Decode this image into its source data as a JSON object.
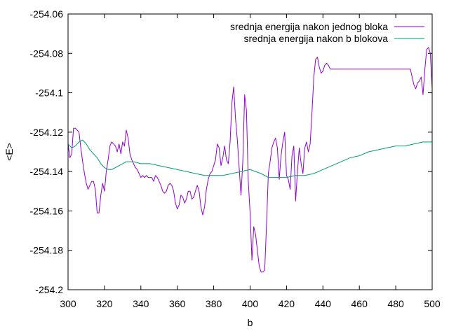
{
  "chart_data": {
    "type": "line",
    "xlabel": "b",
    "ylabel": "<E>",
    "xlim": [
      300,
      500
    ],
    "ylim": [
      -254.2,
      -254.06
    ],
    "x_ticks": [
      "300",
      "320",
      "340",
      "360",
      "380",
      "400",
      "420",
      "440",
      "460",
      "480",
      "500"
    ],
    "y_ticks": [
      "-254.06",
      "-254.08",
      "-254.1",
      "-254.12",
      "-254.14",
      "-254.16",
      "-254.18",
      "-254.2"
    ],
    "legend_position": "top-right",
    "grid": false,
    "series": [
      {
        "name": "srednja energija nakon jednog bloka",
        "color": "#9400d3",
        "points": [
          [
            300,
            -254.126
          ],
          [
            301,
            -254.133
          ],
          [
            302,
            -254.131
          ],
          [
            303,
            -254.118
          ],
          [
            304,
            -254.118
          ],
          [
            305,
            -254.119
          ],
          [
            306,
            -254.12
          ],
          [
            307,
            -254.128
          ],
          [
            308,
            -254.135
          ],
          [
            309,
            -254.141
          ],
          [
            310,
            -254.146
          ],
          [
            311,
            -254.149
          ],
          [
            312,
            -254.147
          ],
          [
            313,
            -254.145
          ],
          [
            314,
            -254.145
          ],
          [
            315,
            -254.149
          ],
          [
            316,
            -254.161
          ],
          [
            317,
            -254.161
          ],
          [
            318,
            -254.152
          ],
          [
            319,
            -254.146
          ],
          [
            320,
            -254.15
          ],
          [
            321,
            -254.14
          ],
          [
            322,
            -254.134
          ],
          [
            323,
            -254.127
          ],
          [
            324,
            -254.125
          ],
          [
            325,
            -254.126
          ],
          [
            326,
            -254.127
          ],
          [
            327,
            -254.13
          ],
          [
            328,
            -254.126
          ],
          [
            329,
            -254.131
          ],
          [
            330,
            -254.125
          ],
          [
            331,
            -254.127
          ],
          [
            332,
            -254.119
          ],
          [
            333,
            -254.123
          ],
          [
            334,
            -254.131
          ],
          [
            335,
            -254.134
          ],
          [
            336,
            -254.136
          ],
          [
            337,
            -254.138
          ],
          [
            338,
            -254.139
          ],
          [
            339,
            -254.141
          ],
          [
            340,
            -254.143
          ],
          [
            341,
            -254.142
          ],
          [
            342,
            -254.143
          ],
          [
            343,
            -254.142
          ],
          [
            344,
            -254.143
          ],
          [
            345,
            -254.143
          ],
          [
            346,
            -254.143
          ],
          [
            347,
            -254.145
          ],
          [
            348,
            -254.142
          ],
          [
            349,
            -254.143
          ],
          [
            350,
            -254.145
          ],
          [
            351,
            -254.147
          ],
          [
            352,
            -254.15
          ],
          [
            353,
            -254.151
          ],
          [
            354,
            -254.15
          ],
          [
            355,
            -254.147
          ],
          [
            356,
            -254.146
          ],
          [
            357,
            -254.147
          ],
          [
            358,
            -254.15
          ],
          [
            359,
            -254.156
          ],
          [
            360,
            -254.159
          ],
          [
            361,
            -254.157
          ],
          [
            362,
            -254.152
          ],
          [
            363,
            -254.153
          ],
          [
            364,
            -254.156
          ],
          [
            365,
            -254.154
          ],
          [
            366,
            -254.15
          ],
          [
            367,
            -254.15
          ],
          [
            368,
            -254.154
          ],
          [
            369,
            -254.153
          ],
          [
            370,
            -254.15
          ],
          [
            371,
            -254.147
          ],
          [
            372,
            -254.15
          ],
          [
            373,
            -254.158
          ],
          [
            374,
            -254.162
          ],
          [
            375,
            -254.158
          ],
          [
            376,
            -254.149
          ],
          [
            377,
            -254.144
          ],
          [
            378,
            -254.141
          ],
          [
            379,
            -254.14
          ],
          [
            380,
            -254.137
          ],
          [
            381,
            -254.134
          ],
          [
            382,
            -254.126
          ],
          [
            383,
            -254.128
          ],
          [
            384,
            -254.137
          ],
          [
            385,
            -254.133
          ],
          [
            386,
            -254.127
          ],
          [
            387,
            -254.134
          ],
          [
            388,
            -254.136
          ],
          [
            389,
            -254.125
          ],
          [
            390,
            -254.105
          ],
          [
            391,
            -254.097
          ],
          [
            392,
            -254.113
          ],
          [
            393,
            -254.124
          ],
          [
            394,
            -254.138
          ],
          [
            395,
            -254.152
          ],
          [
            396,
            -254.135
          ],
          [
            397,
            -254.101
          ],
          [
            398,
            -254.109
          ],
          [
            399,
            -254.145
          ],
          [
            400,
            -254.161
          ],
          [
            401,
            -254.185
          ],
          [
            402,
            -254.168
          ],
          [
            403,
            -254.172
          ],
          [
            404,
            -254.18
          ],
          [
            405,
            -254.188
          ],
          [
            406,
            -254.191
          ],
          [
            407,
            -254.191
          ],
          [
            408,
            -254.19
          ],
          [
            409,
            -254.167
          ],
          [
            410,
            -254.141
          ],
          [
            411,
            -254.135
          ],
          [
            412,
            -254.128
          ],
          [
            413,
            -254.125
          ],
          [
            414,
            -254.123
          ],
          [
            415,
            -254.128
          ],
          [
            416,
            -254.144
          ],
          [
            417,
            -254.132
          ],
          [
            418,
            -254.125
          ],
          [
            419,
            -254.12
          ],
          [
            420,
            -254.142
          ],
          [
            421,
            -254.144
          ],
          [
            422,
            -254.149
          ],
          [
            423,
            -254.132
          ],
          [
            424,
            -254.127
          ],
          [
            425,
            -254.155
          ],
          [
            426,
            -254.14
          ],
          [
            427,
            -254.128
          ],
          [
            428,
            -254.136
          ],
          [
            429,
            -254.141
          ],
          [
            430,
            -254.128
          ],
          [
            431,
            -254.125
          ],
          [
            432,
            -254.13
          ],
          [
            433,
            -254.126
          ],
          [
            434,
            -254.11
          ],
          [
            435,
            -254.092
          ],
          [
            436,
            -254.083
          ],
          [
            437,
            -254.082
          ],
          [
            438,
            -254.087
          ],
          [
            439,
            -254.09
          ],
          [
            440,
            -254.089
          ],
          [
            441,
            -254.086
          ],
          [
            442,
            -254.085
          ],
          [
            443,
            -254.086
          ],
          [
            444,
            -254.088
          ],
          [
            445,
            -254.088
          ],
          [
            446,
            -254.088
          ],
          [
            447,
            -254.088
          ],
          [
            448,
            -254.088
          ],
          [
            449,
            -254.088
          ],
          [
            450,
            -254.088
          ],
          [
            451,
            -254.088
          ],
          [
            452,
            -254.088
          ],
          [
            453,
            -254.088
          ],
          [
            454,
            -254.088
          ],
          [
            455,
            -254.088
          ],
          [
            456,
            -254.088
          ],
          [
            457,
            -254.088
          ],
          [
            458,
            -254.088
          ],
          [
            459,
            -254.088
          ],
          [
            460,
            -254.088
          ],
          [
            461,
            -254.088
          ],
          [
            462,
            -254.088
          ],
          [
            463,
            -254.088
          ],
          [
            464,
            -254.088
          ],
          [
            465,
            -254.088
          ],
          [
            466,
            -254.088
          ],
          [
            467,
            -254.088
          ],
          [
            468,
            -254.088
          ],
          [
            469,
            -254.088
          ],
          [
            470,
            -254.088
          ],
          [
            471,
            -254.088
          ],
          [
            472,
            -254.088
          ],
          [
            473,
            -254.088
          ],
          [
            474,
            -254.088
          ],
          [
            475,
            -254.088
          ],
          [
            476,
            -254.088
          ],
          [
            477,
            -254.088
          ],
          [
            478,
            -254.088
          ],
          [
            479,
            -254.088
          ],
          [
            480,
            -254.088
          ],
          [
            481,
            -254.088
          ],
          [
            482,
            -254.088
          ],
          [
            483,
            -254.088
          ],
          [
            484,
            -254.088
          ],
          [
            485,
            -254.088
          ],
          [
            486,
            -254.088
          ],
          [
            487,
            -254.088
          ],
          [
            488,
            -254.088
          ],
          [
            489,
            -254.092
          ],
          [
            490,
            -254.096
          ],
          [
            491,
            -254.098
          ],
          [
            492,
            -254.095
          ],
          [
            493,
            -254.094
          ],
          [
            494,
            -254.092
          ],
          [
            495,
            -254.101
          ],
          [
            496,
            -254.088
          ],
          [
            497,
            -254.078
          ],
          [
            498,
            -254.077
          ],
          [
            499,
            -254.08
          ],
          [
            500,
            -254.098
          ]
        ]
      },
      {
        "name": "srednja energija nakon b blokova",
        "color": "#009e73",
        "points": [
          [
            300,
            -254.126
          ],
          [
            302,
            -254.128
          ],
          [
            304,
            -254.127
          ],
          [
            306,
            -254.125
          ],
          [
            308,
            -254.124
          ],
          [
            310,
            -254.126
          ],
          [
            312,
            -254.129
          ],
          [
            314,
            -254.131
          ],
          [
            316,
            -254.133
          ],
          [
            318,
            -254.136
          ],
          [
            320,
            -254.138
          ],
          [
            322,
            -254.139
          ],
          [
            324,
            -254.139
          ],
          [
            326,
            -254.138
          ],
          [
            328,
            -254.137
          ],
          [
            330,
            -254.136
          ],
          [
            332,
            -254.135
          ],
          [
            334,
            -254.135
          ],
          [
            336,
            -254.135
          ],
          [
            340,
            -254.136
          ],
          [
            345,
            -254.136
          ],
          [
            350,
            -254.137
          ],
          [
            355,
            -254.138
          ],
          [
            360,
            -254.139
          ],
          [
            365,
            -254.14
          ],
          [
            370,
            -254.141
          ],
          [
            375,
            -254.142
          ],
          [
            380,
            -254.142
          ],
          [
            385,
            -254.142
          ],
          [
            390,
            -254.141
          ],
          [
            395,
            -254.14
          ],
          [
            400,
            -254.139
          ],
          [
            403,
            -254.14
          ],
          [
            406,
            -254.141
          ],
          [
            410,
            -254.143
          ],
          [
            415,
            -254.143
          ],
          [
            420,
            -254.143
          ],
          [
            425,
            -254.142
          ],
          [
            430,
            -254.142
          ],
          [
            435,
            -254.141
          ],
          [
            440,
            -254.139
          ],
          [
            445,
            -254.137
          ],
          [
            450,
            -254.135
          ],
          [
            455,
            -254.133
          ],
          [
            460,
            -254.132
          ],
          [
            465,
            -254.13
          ],
          [
            470,
            -254.129
          ],
          [
            475,
            -254.128
          ],
          [
            480,
            -254.127
          ],
          [
            485,
            -254.127
          ],
          [
            490,
            -254.126
          ],
          [
            495,
            -254.125
          ],
          [
            500,
            -254.125
          ]
        ]
      }
    ]
  }
}
